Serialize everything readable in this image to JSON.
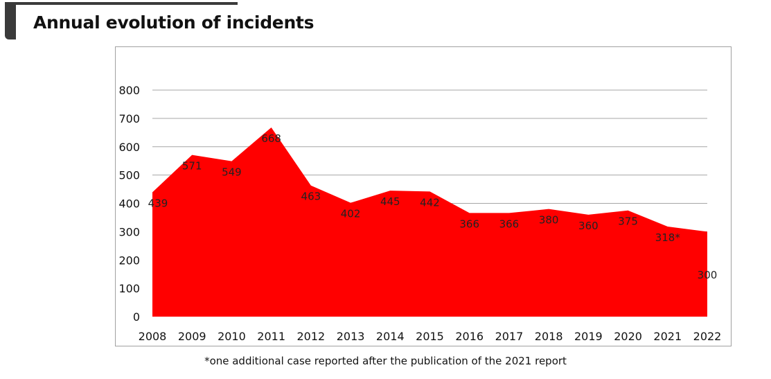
{
  "title": "Annual evolution of incidents",
  "footnote": "*one additional case reported after the publication of the 2021 report",
  "chart_data": {
    "type": "area",
    "title": "Annual evolution of incidents",
    "categories": [
      "2008",
      "2009",
      "2010",
      "2011",
      "2012",
      "2013",
      "2014",
      "2015",
      "2016",
      "2017",
      "2018",
      "2019",
      "2020",
      "2021",
      "2022"
    ],
    "values": [
      439,
      571,
      549,
      668,
      463,
      402,
      445,
      442,
      366,
      366,
      380,
      360,
      375,
      318,
      300
    ],
    "data_labels": [
      "439",
      "571",
      "549",
      "668",
      "463",
      "402",
      "445",
      "442",
      "366",
      "366",
      "380",
      "360",
      "375",
      "318*",
      "300"
    ],
    "yticks": [
      "0",
      "100",
      "200",
      "300",
      "400",
      "500",
      "600",
      "700",
      "800"
    ],
    "ylim": [
      0,
      800
    ],
    "grid": true,
    "color": "#ff0000",
    "xlabel": "",
    "ylabel": ""
  }
}
